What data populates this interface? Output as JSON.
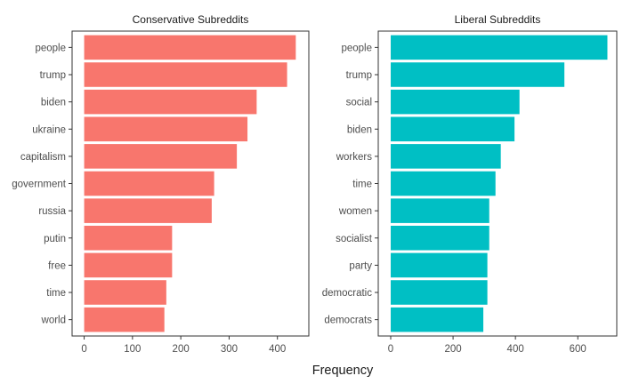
{
  "chart_data": [
    {
      "type": "bar",
      "orientation": "horizontal",
      "title": "Conservative Subreddits",
      "categories": [
        "people",
        "trump",
        "biden",
        "ukraine",
        "capitalism",
        "government",
        "russia",
        "putin",
        "free",
        "time",
        "world"
      ],
      "values": [
        438,
        420,
        357,
        338,
        316,
        269,
        264,
        182,
        182,
        170,
        166
      ],
      "xlim": [
        -25,
        465
      ],
      "xticks": [
        0,
        100,
        200,
        300,
        400
      ],
      "color": "#F8766D"
    },
    {
      "type": "bar",
      "orientation": "horizontal",
      "title": "Liberal Subreddits",
      "categories": [
        "people",
        "trump",
        "social",
        "biden",
        "workers",
        "time",
        "women",
        "socialist",
        "party",
        "democratic",
        "democrats"
      ],
      "values": [
        695,
        557,
        413,
        397,
        353,
        336,
        316,
        316,
        310,
        310,
        297
      ],
      "xlim": [
        -40,
        725
      ],
      "xticks": [
        0,
        200,
        400,
        600
      ],
      "color": "#00BFC4"
    }
  ],
  "xlabel": "Frequency"
}
